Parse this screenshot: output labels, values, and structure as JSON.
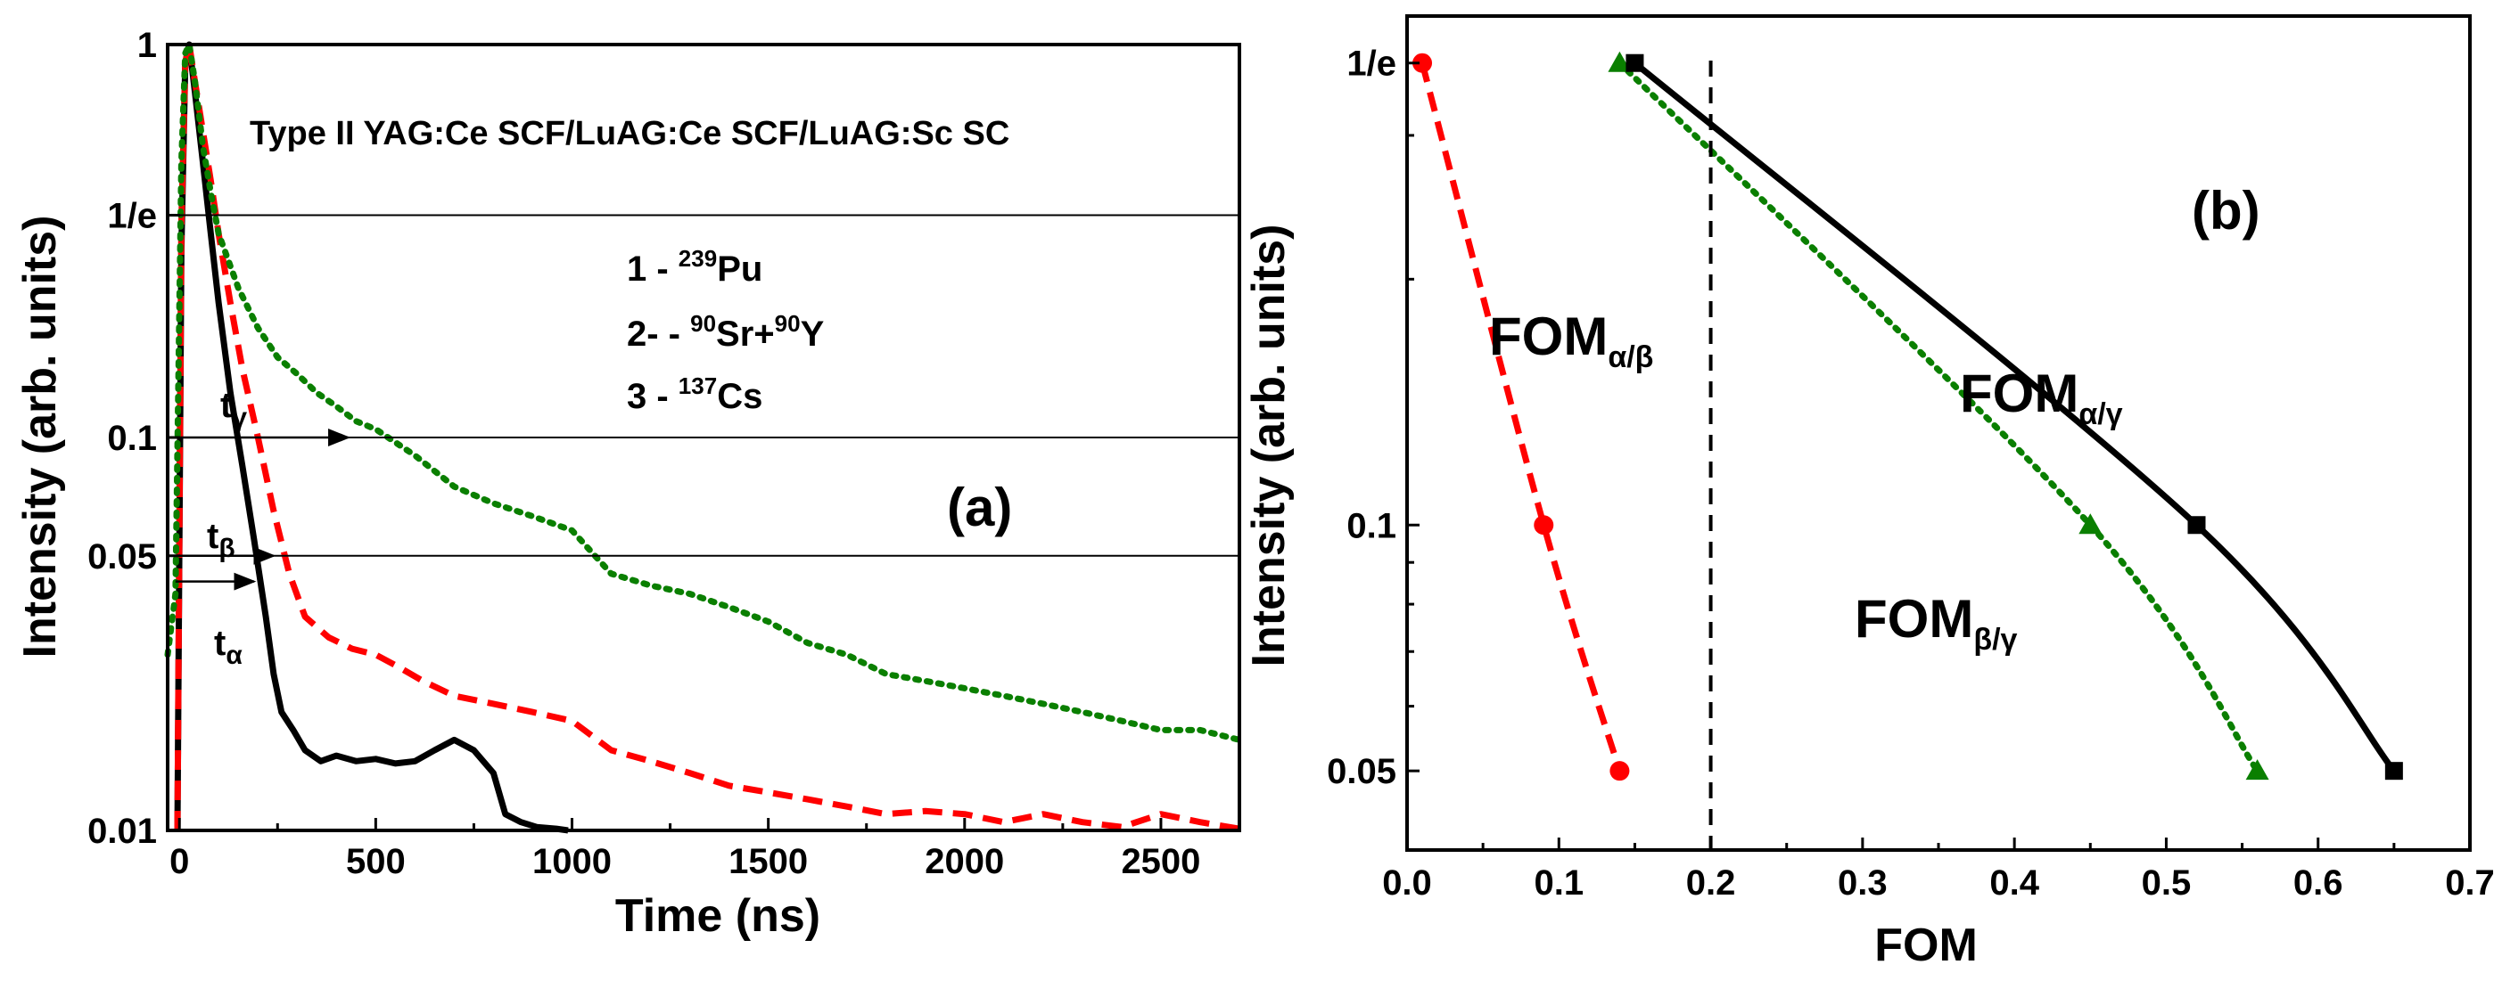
{
  "chart_data": [
    {
      "panel": "(a)",
      "type": "line",
      "title": "Type II YAG:Ce SCF/LuAG:Ce SCF/LuAG:Sc SC",
      "xlabel": "Time (ns)",
      "ylabel": "Intensity (arb. units)",
      "xlim": [
        -30,
        2700
      ],
      "ylim": [
        0.01,
        1
      ],
      "yscale": "log",
      "x_ticks": [
        "0",
        "500",
        "1000",
        "1500",
        "2000",
        "2500"
      ],
      "y_ticks": [
        "0.01",
        "0.05",
        "0.1",
        "1/e",
        "1"
      ],
      "hlines": [
        0.3679,
        0.1,
        0.05
      ],
      "legend": {
        "n1": "1 - ",
        "s1": "239",
        "t1": "Pu",
        "n2": "2- - ",
        "s2a": "90",
        "t2a": "Sr+",
        "s2b": "90",
        "t2b": "Y",
        "n3": "3 - ",
        "s3": "137",
        "t3": "Cs"
      },
      "marks": {
        "t_gamma": {
          "label": "t",
          "sub": "γ",
          "x_end": 430,
          "y": 0.1
        },
        "t_beta": {
          "label": "t",
          "sub": "β",
          "x_end": 240,
          "y": 0.05
        },
        "t_alpha": {
          "label": "t",
          "sub": "α",
          "x_end": 190,
          "y": 0.043
        }
      },
      "series": [
        {
          "name": "1 - 239Pu",
          "color": "#000000",
          "dash": "solid",
          "x": [
            -5,
            5,
            15,
            25,
            40,
            60,
            80,
            100,
            130,
            160,
            190,
            220,
            240,
            260,
            290,
            320,
            360,
            400,
            450,
            500,
            550,
            600,
            650,
            700,
            750,
            800,
            830,
            870,
            910,
            960,
            990
          ],
          "y": [
            0.01,
            0.3,
            0.9,
            1.0,
            0.75,
            0.5,
            0.33,
            0.22,
            0.13,
            0.085,
            0.055,
            0.035,
            0.025,
            0.02,
            0.018,
            0.016,
            0.015,
            0.0155,
            0.015,
            0.0152,
            0.0148,
            0.015,
            0.016,
            0.017,
            0.016,
            0.014,
            0.011,
            0.0105,
            0.0102,
            0.0101,
            0.01
          ]
        },
        {
          "name": "2 - 90Sr+90Y",
          "color": "#ff0000",
          "dash": "dashed",
          "x": [
            -5,
            5,
            15,
            25,
            40,
            60,
            80,
            100,
            130,
            160,
            200,
            240,
            280,
            320,
            380,
            440,
            500,
            560,
            620,
            700,
            800,
            900,
            1000,
            1100,
            1200,
            1300,
            1400,
            1500,
            1600,
            1700,
            1800,
            1900,
            2000,
            2100,
            2200,
            2300,
            2400,
            2500,
            2600,
            2700
          ],
          "y": [
            0.01,
            0.35,
            0.9,
            1.0,
            0.8,
            0.6,
            0.45,
            0.33,
            0.22,
            0.15,
            0.1,
            0.065,
            0.045,
            0.035,
            0.031,
            0.029,
            0.028,
            0.026,
            0.024,
            0.022,
            0.021,
            0.02,
            0.019,
            0.016,
            0.015,
            0.014,
            0.013,
            0.0125,
            0.012,
            0.0115,
            0.011,
            0.0112,
            0.011,
            0.0105,
            0.011,
            0.0105,
            0.0102,
            0.011,
            0.0105,
            0.0101
          ]
        },
        {
          "name": "3 - 137Cs",
          "color": "#0a7f00",
          "dash": "dotted",
          "x": [
            -30,
            -10,
            5,
            15,
            25,
            40,
            60,
            80,
            100,
            150,
            200,
            250,
            300,
            350,
            400,
            450,
            500,
            600,
            700,
            800,
            900,
            1000,
            1100,
            1200,
            1300,
            1400,
            1500,
            1600,
            1700,
            1800,
            1900,
            2000,
            2100,
            2200,
            2300,
            2400,
            2500,
            2600,
            2700
          ],
          "y": [
            0.028,
            0.04,
            0.5,
            0.95,
            1.0,
            0.8,
            0.55,
            0.42,
            0.33,
            0.24,
            0.19,
            0.16,
            0.145,
            0.13,
            0.12,
            0.11,
            0.105,
            0.09,
            0.075,
            0.068,
            0.063,
            0.058,
            0.045,
            0.042,
            0.04,
            0.037,
            0.034,
            0.03,
            0.028,
            0.025,
            0.024,
            0.023,
            0.022,
            0.021,
            0.02,
            0.019,
            0.018,
            0.018,
            0.017
          ]
        }
      ]
    },
    {
      "panel": "(b)",
      "type": "line",
      "xlabel": "FOM",
      "ylabel": "Intensity (arb. units)",
      "xlim": [
        0.0,
        0.7
      ],
      "ylim": [
        0.04,
        0.42
      ],
      "yscale": "log",
      "x_ticks": [
        "0.0",
        "0.1",
        "0.2",
        "0.3",
        "0.4",
        "0.5",
        "0.6",
        "0.7"
      ],
      "y_ticks": [
        "0.05",
        "0.1",
        "1/e"
      ],
      "vline_x": 0.2,
      "labels": {
        "fom_ab": {
          "main": "FOM",
          "sub": "α/β"
        },
        "fom_ag": {
          "main": "FOM",
          "sub": "α/γ"
        },
        "fom_bg": {
          "main": "FOM",
          "sub": "β/γ"
        }
      },
      "series": [
        {
          "name": "FOMα/β",
          "color": "#ff0000",
          "dash": "dashed",
          "marker": "circle",
          "x": [
            0.01,
            0.09,
            0.14
          ],
          "y": [
            0.3679,
            0.1,
            0.05
          ]
        },
        {
          "name": "FOMβ/γ",
          "color": "#0a7f00",
          "dash": "dotted",
          "marker": "triangle",
          "x": [
            0.14,
            0.45,
            0.56
          ],
          "y": [
            0.3679,
            0.1,
            0.05
          ]
        },
        {
          "name": "FOMα/γ",
          "color": "#000000",
          "dash": "solid",
          "marker": "square",
          "x": [
            0.15,
            0.52,
            0.65
          ],
          "y": [
            0.3679,
            0.1,
            0.05
          ]
        }
      ]
    }
  ],
  "panel_a_label": "(a)",
  "panel_b_label": "(b)"
}
